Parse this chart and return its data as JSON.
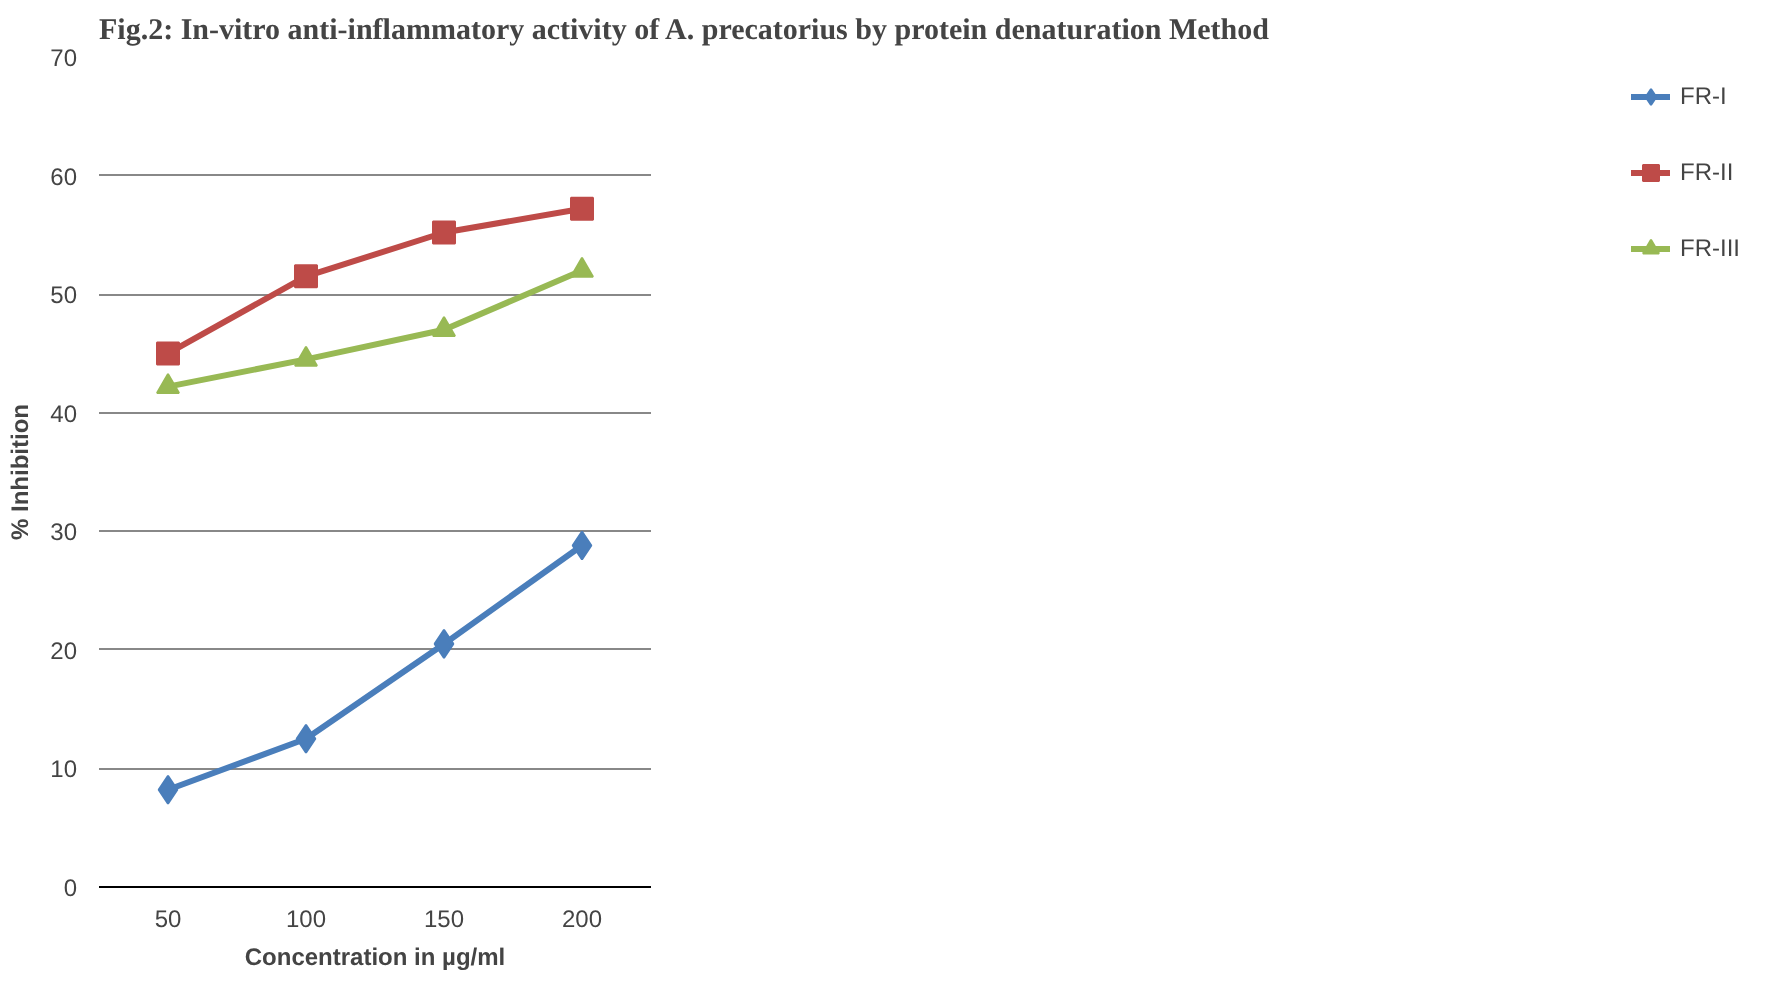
{
  "chart_data": {
    "type": "line",
    "title": "Fig.2: In-vitro anti-inflammatory activity of A. precatorius by protein denaturation Method",
    "xlabel": "Concentration in µg/ml",
    "ylabel": "% Inhibition",
    "categories": [
      "50",
      "100",
      "150",
      "200"
    ],
    "series": [
      {
        "name": "FR-I",
        "color": "#4a7ebb",
        "marker": "diamond",
        "values": [
          8.2,
          12.5,
          20.5,
          28.8
        ]
      },
      {
        "name": "FR-II",
        "color": "#be4b48",
        "marker": "square",
        "values": [
          45,
          51.5,
          55.2,
          57.2
        ]
      },
      {
        "name": "FR-III",
        "color": "#98b954",
        "marker": "triangle",
        "values": [
          42.2,
          44.5,
          47,
          52
        ]
      }
    ],
    "ylim": [
      0,
      70
    ],
    "yticks": [
      0,
      10,
      20,
      30,
      40,
      50,
      60,
      70
    ],
    "grid": "y",
    "legend": "right"
  }
}
